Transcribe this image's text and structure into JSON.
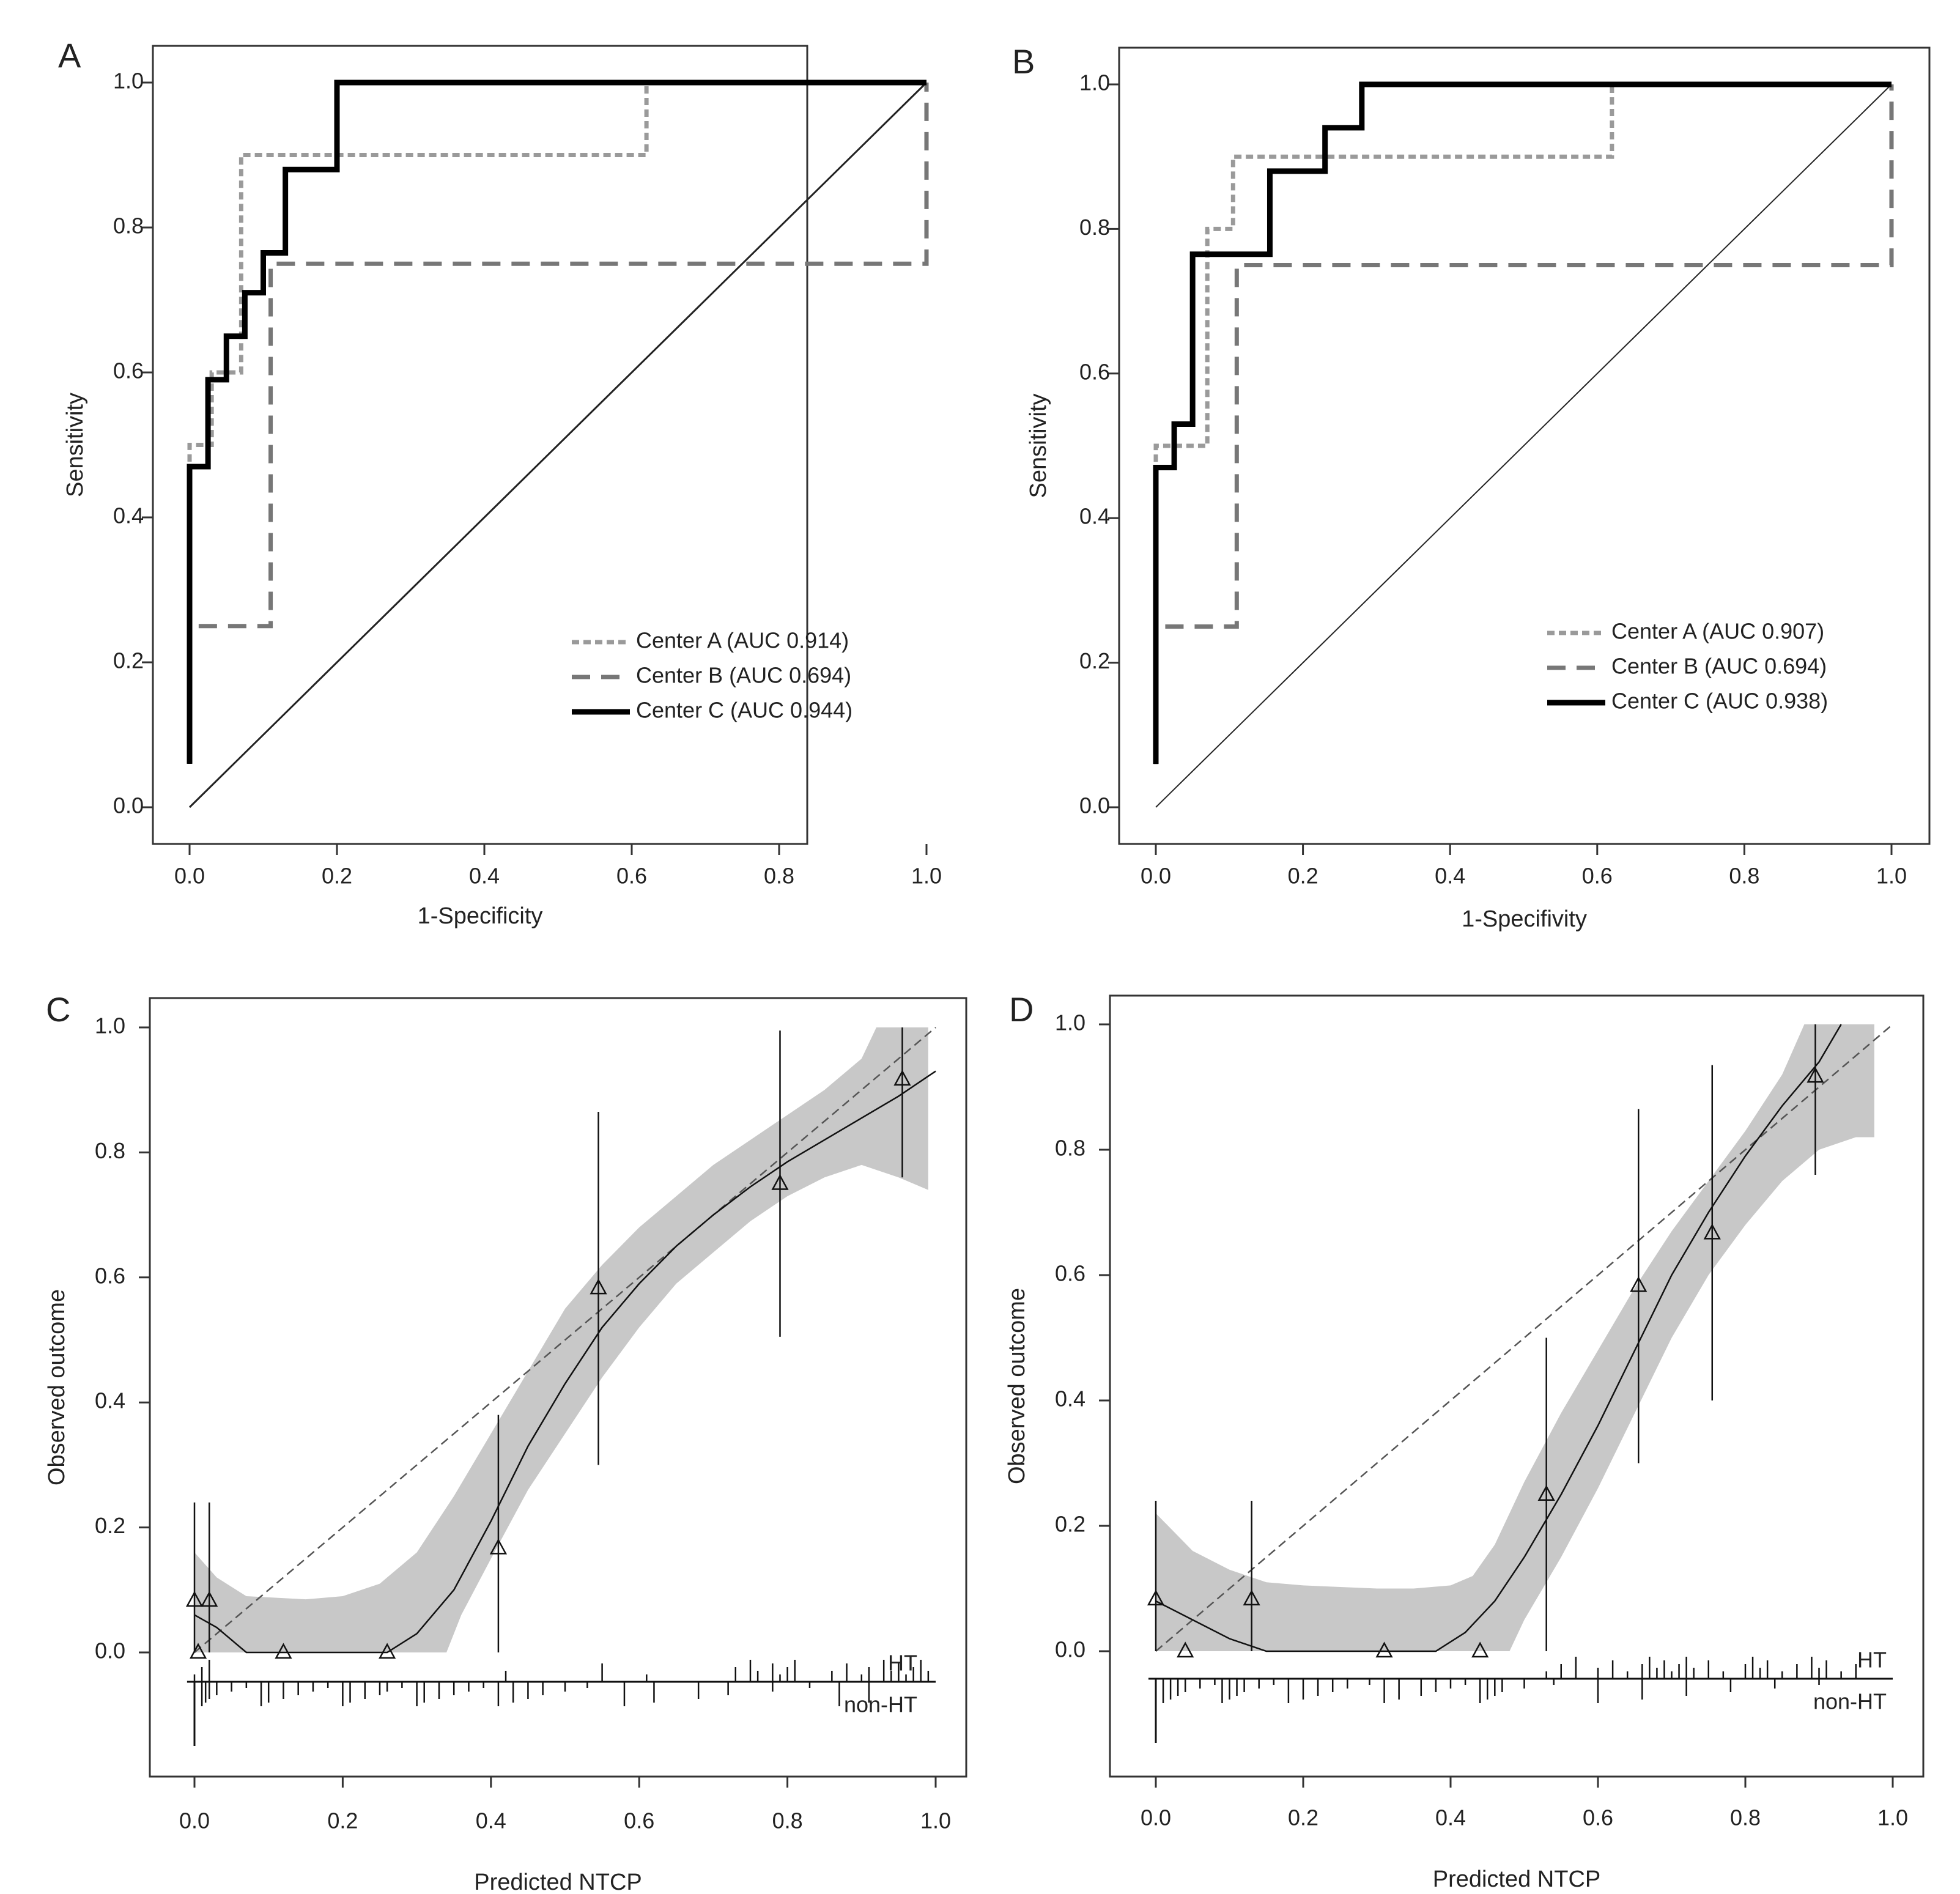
{
  "chart_data": [
    {
      "type": "line",
      "panel": "A",
      "xlabel": "1-Specificity",
      "ylabel": "Sensitivity",
      "xlim": [
        0,
        1
      ],
      "ylim": [
        0,
        1
      ],
      "xticks": [
        "0.0",
        "0.2",
        "0.4",
        "0.6",
        "0.8",
        "1.0"
      ],
      "yticks": [
        "0.0",
        "0.2",
        "0.4",
        "0.6",
        "0.8",
        "1.0"
      ],
      "legend_position": "bottom-right",
      "reference_line": [
        [
          0,
          0
        ],
        [
          1,
          1
        ]
      ],
      "series": [
        {
          "name": "Center A (AUC 0.914)",
          "style": "dotted-light",
          "color": "#9a9a9a",
          "points": [
            [
              0,
              0.06
            ],
            [
              0,
              0.5
            ],
            [
              0.03,
              0.5
            ],
            [
              0.03,
              0.6
            ],
            [
              0.07,
              0.6
            ],
            [
              0.07,
              0.9
            ],
            [
              0.62,
              0.9
            ],
            [
              0.62,
              1.0
            ],
            [
              1.0,
              1.0
            ]
          ]
        },
        {
          "name": "Center B (AUC 0.694)",
          "style": "dashed",
          "color": "#777777",
          "points": [
            [
              0,
              0.06
            ],
            [
              0,
              0.25
            ],
            [
              0.11,
              0.25
            ],
            [
              0.11,
              0.75
            ],
            [
              1.0,
              0.75
            ],
            [
              1.0,
              1.0
            ]
          ]
        },
        {
          "name": "Center C (AUC 0.944)",
          "style": "solid-thick",
          "color": "#000000",
          "points": [
            [
              0,
              0.06
            ],
            [
              0,
              0.47
            ],
            [
              0.025,
              0.47
            ],
            [
              0.025,
              0.59
            ],
            [
              0.05,
              0.59
            ],
            [
              0.05,
              0.65
            ],
            [
              0.075,
              0.65
            ],
            [
              0.075,
              0.71
            ],
            [
              0.1,
              0.71
            ],
            [
              0.1,
              0.765
            ],
            [
              0.13,
              0.765
            ],
            [
              0.13,
              0.88
            ],
            [
              0.2,
              0.88
            ],
            [
              0.2,
              1.0
            ],
            [
              1.0,
              1.0
            ]
          ]
        }
      ]
    },
    {
      "type": "line",
      "panel": "B",
      "xlabel": "1-Specifivity",
      "ylabel": "Sensitivity",
      "xlim": [
        0,
        1
      ],
      "ylim": [
        0,
        1
      ],
      "xticks": [
        "0.0",
        "0.2",
        "0.4",
        "0.6",
        "0.8",
        "1.0"
      ],
      "yticks": [
        "0.0",
        "0.2",
        "0.4",
        "0.6",
        "0.8",
        "1.0"
      ],
      "legend_position": "bottom-right",
      "reference_line": [
        [
          0,
          0
        ],
        [
          1,
          1
        ]
      ],
      "series": [
        {
          "name": "Center A (AUC 0.907)",
          "style": "dotted-light",
          "color": "#9a9a9a",
          "points": [
            [
              0,
              0.06
            ],
            [
              0,
              0.5
            ],
            [
              0.07,
              0.5
            ],
            [
              0.07,
              0.8
            ],
            [
              0.105,
              0.8
            ],
            [
              0.105,
              0.9
            ],
            [
              0.62,
              0.9
            ],
            [
              0.62,
              1.0
            ],
            [
              1.0,
              1.0
            ]
          ]
        },
        {
          "name": "Center B (AUC 0.694)",
          "style": "dashed",
          "color": "#777777",
          "points": [
            [
              0,
              0.06
            ],
            [
              0,
              0.25
            ],
            [
              0.11,
              0.25
            ],
            [
              0.11,
              0.75
            ],
            [
              1.0,
              0.75
            ],
            [
              1.0,
              1.0
            ]
          ]
        },
        {
          "name": "Center C (AUC 0.938)",
          "style": "solid-thick",
          "color": "#000000",
          "points": [
            [
              0,
              0.06
            ],
            [
              0,
              0.47
            ],
            [
              0.025,
              0.47
            ],
            [
              0.025,
              0.53
            ],
            [
              0.05,
              0.53
            ],
            [
              0.05,
              0.765
            ],
            [
              0.155,
              0.765
            ],
            [
              0.155,
              0.88
            ],
            [
              0.23,
              0.88
            ],
            [
              0.23,
              0.94
            ],
            [
              0.28,
              0.94
            ],
            [
              0.28,
              1.0
            ],
            [
              1.0,
              1.0
            ]
          ]
        }
      ]
    },
    {
      "type": "scatter",
      "panel": "C",
      "xlabel": "Predicted NTCP",
      "ylabel": "Observed outcome",
      "xlim": [
        0,
        1
      ],
      "ylim": [
        0,
        1
      ],
      "xticks": [
        "0.0",
        "0.2",
        "0.4",
        "0.6",
        "0.8",
        "1.0"
      ],
      "yticks": [
        "0.0",
        "0.2",
        "0.4",
        "0.6",
        "0.8",
        "1.0"
      ],
      "rug_labels": {
        "top": "HT",
        "bottom": "non-HT"
      },
      "reference_line": [
        [
          0,
          0
        ],
        [
          1,
          1
        ]
      ],
      "points": [
        {
          "x": 0.0,
          "y": 0.083,
          "lo": 0.0,
          "hi": 0.24
        },
        {
          "x": 0.02,
          "y": 0.083,
          "lo": 0.0,
          "hi": 0.24
        },
        {
          "x": 0.005,
          "y": 0.0
        },
        {
          "x": 0.12,
          "y": 0.0
        },
        {
          "x": 0.26,
          "y": 0.0
        },
        {
          "x": 0.41,
          "y": 0.167,
          "lo": 0.0,
          "hi": 0.38
        },
        {
          "x": 0.545,
          "y": 0.583,
          "lo": 0.3,
          "hi": 0.865
        },
        {
          "x": 0.79,
          "y": 0.75,
          "lo": 0.505,
          "hi": 0.995
        },
        {
          "x": 0.955,
          "y": 0.917,
          "lo": 0.76,
          "hi": 1.0
        }
      ],
      "smooth_curve": [
        [
          0.0,
          0.06
        ],
        [
          0.03,
          0.04
        ],
        [
          0.07,
          0.0
        ],
        [
          0.26,
          0.0
        ],
        [
          0.3,
          0.03
        ],
        [
          0.35,
          0.1
        ],
        [
          0.4,
          0.21
        ],
        [
          0.45,
          0.33
        ],
        [
          0.5,
          0.43
        ],
        [
          0.55,
          0.52
        ],
        [
          0.6,
          0.59
        ],
        [
          0.65,
          0.65
        ],
        [
          0.7,
          0.7
        ],
        [
          0.75,
          0.745
        ],
        [
          0.8,
          0.785
        ],
        [
          0.85,
          0.82
        ],
        [
          0.9,
          0.855
        ],
        [
          0.95,
          0.89
        ],
        [
          1.0,
          0.93
        ]
      ],
      "band_upper": [
        [
          0.0,
          0.16
        ],
        [
          0.03,
          0.12
        ],
        [
          0.07,
          0.09
        ],
        [
          0.15,
          0.085
        ],
        [
          0.2,
          0.09
        ],
        [
          0.25,
          0.11
        ],
        [
          0.3,
          0.16
        ],
        [
          0.35,
          0.25
        ],
        [
          0.4,
          0.35
        ],
        [
          0.45,
          0.45
        ],
        [
          0.5,
          0.55
        ],
        [
          0.55,
          0.62
        ],
        [
          0.6,
          0.68
        ],
        [
          0.65,
          0.73
        ],
        [
          0.7,
          0.78
        ],
        [
          0.75,
          0.82
        ],
        [
          0.8,
          0.86
        ],
        [
          0.85,
          0.9
        ],
        [
          0.9,
          0.95
        ],
        [
          0.92,
          1.0
        ],
        [
          0.99,
          1.0
        ]
      ],
      "band_lower": [
        [
          0.0,
          0.0
        ],
        [
          0.34,
          0.0
        ],
        [
          0.36,
          0.06
        ],
        [
          0.4,
          0.15
        ],
        [
          0.45,
          0.26
        ],
        [
          0.5,
          0.35
        ],
        [
          0.55,
          0.44
        ],
        [
          0.6,
          0.52
        ],
        [
          0.65,
          0.59
        ],
        [
          0.7,
          0.64
        ],
        [
          0.75,
          0.69
        ],
        [
          0.8,
          0.73
        ],
        [
          0.85,
          0.76
        ],
        [
          0.9,
          0.78
        ],
        [
          0.95,
          0.76
        ],
        [
          0.99,
          0.74
        ]
      ],
      "rug_ht": [
        0.0,
        0.01,
        0.02,
        0.42,
        0.55,
        0.61,
        0.73,
        0.75,
        0.76,
        0.78,
        0.79,
        0.8,
        0.81,
        0.86,
        0.88,
        0.9,
        0.91,
        0.93,
        0.94,
        0.95,
        0.96,
        0.97,
        0.98,
        0.99
      ],
      "rug_nonht": [
        0.0,
        0.01,
        0.015,
        0.02,
        0.03,
        0.05,
        0.07,
        0.09,
        0.1,
        0.12,
        0.14,
        0.16,
        0.18,
        0.2,
        0.21,
        0.23,
        0.25,
        0.26,
        0.28,
        0.3,
        0.31,
        0.33,
        0.35,
        0.37,
        0.39,
        0.41,
        0.43,
        0.45,
        0.47,
        0.5,
        0.53,
        0.58,
        0.62,
        0.68,
        0.72,
        0.78,
        0.83,
        0.87,
        0.91
      ],
      "rug_nonht_tall": [
        0.0
      ]
    },
    {
      "type": "scatter",
      "panel": "D",
      "xlabel": "Predicted NTCP",
      "ylabel": "Observed outcome",
      "xlim": [
        0,
        1
      ],
      "ylim": [
        0,
        1
      ],
      "xticks": [
        "0.0",
        "0.2",
        "0.4",
        "0.6",
        "0.8",
        "1.0"
      ],
      "yticks": [
        "0.0",
        "0.2",
        "0.4",
        "0.6",
        "0.8",
        "1.0"
      ],
      "rug_labels": {
        "top": "HT",
        "bottom": "non-HT"
      },
      "reference_line": [
        [
          0,
          0
        ],
        [
          1,
          1
        ]
      ],
      "points": [
        {
          "x": 0.0,
          "y": 0.083,
          "lo": 0.0,
          "hi": 0.24
        },
        {
          "x": 0.04,
          "y": 0.0
        },
        {
          "x": 0.13,
          "y": 0.083,
          "lo": 0.0,
          "hi": 0.24
        },
        {
          "x": 0.31,
          "y": 0.0
        },
        {
          "x": 0.44,
          "y": 0.0
        },
        {
          "x": 0.53,
          "y": 0.25,
          "lo": 0.0,
          "hi": 0.5
        },
        {
          "x": 0.655,
          "y": 0.583,
          "lo": 0.3,
          "hi": 0.865
        },
        {
          "x": 0.755,
          "y": 0.667,
          "lo": 0.4,
          "hi": 0.935
        },
        {
          "x": 0.895,
          "y": 0.917,
          "lo": 0.76,
          "hi": 1.0
        }
      ],
      "smooth_curve": [
        [
          0.0,
          0.08
        ],
        [
          0.05,
          0.05
        ],
        [
          0.1,
          0.02
        ],
        [
          0.15,
          0.0
        ],
        [
          0.38,
          0.0
        ],
        [
          0.42,
          0.03
        ],
        [
          0.46,
          0.08
        ],
        [
          0.5,
          0.15
        ],
        [
          0.55,
          0.25
        ],
        [
          0.6,
          0.36
        ],
        [
          0.65,
          0.48
        ],
        [
          0.7,
          0.6
        ],
        [
          0.75,
          0.7
        ],
        [
          0.8,
          0.79
        ],
        [
          0.85,
          0.87
        ],
        [
          0.9,
          0.94
        ],
        [
          0.93,
          1.0
        ]
      ],
      "band_upper": [
        [
          0.0,
          0.22
        ],
        [
          0.05,
          0.16
        ],
        [
          0.1,
          0.13
        ],
        [
          0.15,
          0.11
        ],
        [
          0.2,
          0.105
        ],
        [
          0.3,
          0.1
        ],
        [
          0.35,
          0.1
        ],
        [
          0.4,
          0.105
        ],
        [
          0.43,
          0.12
        ],
        [
          0.46,
          0.17
        ],
        [
          0.5,
          0.27
        ],
        [
          0.55,
          0.38
        ],
        [
          0.6,
          0.48
        ],
        [
          0.65,
          0.58
        ],
        [
          0.7,
          0.67
        ],
        [
          0.75,
          0.75
        ],
        [
          0.8,
          0.83
        ],
        [
          0.85,
          0.92
        ],
        [
          0.88,
          1.0
        ],
        [
          0.975,
          1.0
        ]
      ],
      "band_lower": [
        [
          0.0,
          0.0
        ],
        [
          0.48,
          0.0
        ],
        [
          0.5,
          0.05
        ],
        [
          0.55,
          0.15
        ],
        [
          0.6,
          0.26
        ],
        [
          0.65,
          0.38
        ],
        [
          0.7,
          0.5
        ],
        [
          0.75,
          0.6
        ],
        [
          0.8,
          0.68
        ],
        [
          0.85,
          0.75
        ],
        [
          0.9,
          0.8
        ],
        [
          0.95,
          0.82
        ],
        [
          0.975,
          0.82
        ]
      ],
      "rug_ht": [
        0.53,
        0.55,
        0.57,
        0.6,
        0.62,
        0.64,
        0.66,
        0.67,
        0.68,
        0.69,
        0.7,
        0.71,
        0.72,
        0.73,
        0.75,
        0.77,
        0.8,
        0.81,
        0.82,
        0.83,
        0.85,
        0.87,
        0.89,
        0.9,
        0.91,
        0.93,
        0.95
      ],
      "rug_nonht": [
        0.0,
        0.01,
        0.02,
        0.03,
        0.04,
        0.06,
        0.08,
        0.09,
        0.1,
        0.11,
        0.12,
        0.14,
        0.16,
        0.18,
        0.2,
        0.22,
        0.24,
        0.26,
        0.29,
        0.31,
        0.33,
        0.36,
        0.38,
        0.4,
        0.42,
        0.44,
        0.45,
        0.46,
        0.47,
        0.5,
        0.54,
        0.6,
        0.66,
        0.72,
        0.78,
        0.84,
        0.9
      ],
      "rug_nonht_tall": [
        0.0
      ]
    }
  ]
}
